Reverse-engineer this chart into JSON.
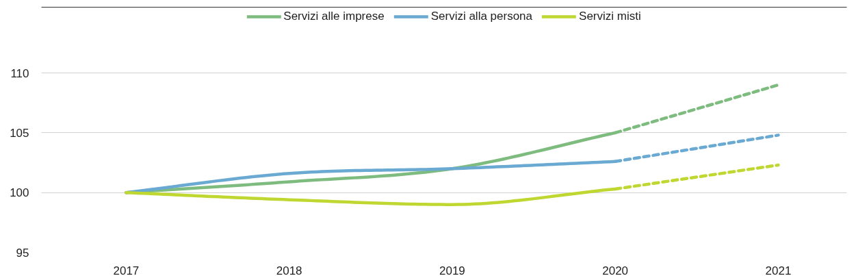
{
  "chart_data": {
    "type": "line",
    "x": [
      2017,
      2018,
      2019,
      2020,
      2021
    ],
    "xlim": [
      2016.48,
      2021.42
    ],
    "xticks": [
      2017,
      2018,
      2019,
      2020,
      2021
    ],
    "ylim": [
      95,
      115.5
    ],
    "yticks": [
      95,
      100,
      105,
      110
    ],
    "grid": "y",
    "legend": "top",
    "marker": "none",
    "series": [
      {
        "name": "Servizi alle imprese",
        "color": "#7dbb7f",
        "line_style": "solid",
        "values": [
          100,
          100.9,
          102.0,
          105.0,
          null
        ]
      },
      {
        "name": "Servizi alla persona",
        "color": "#6aa9d1",
        "line_style": "solid",
        "values": [
          100,
          101.6,
          102.0,
          102.6,
          null
        ]
      },
      {
        "name": "Servizi misti",
        "color": "#bfd730",
        "line_style": "solid",
        "values": [
          100,
          99.4,
          99.0,
          100.3,
          null
        ]
      },
      {
        "color": "#7dbb7f",
        "line_style": "dashed",
        "values": [
          null,
          null,
          null,
          105.0,
          109.0
        ]
      },
      {
        "color": "#6aa9d1",
        "line_style": "dashed",
        "values": [
          null,
          null,
          null,
          102.6,
          104.8
        ]
      },
      {
        "color": "#bfd730",
        "line_style": "dashed",
        "values": [
          null,
          null,
          null,
          100.3,
          102.3
        ]
      }
    ]
  }
}
